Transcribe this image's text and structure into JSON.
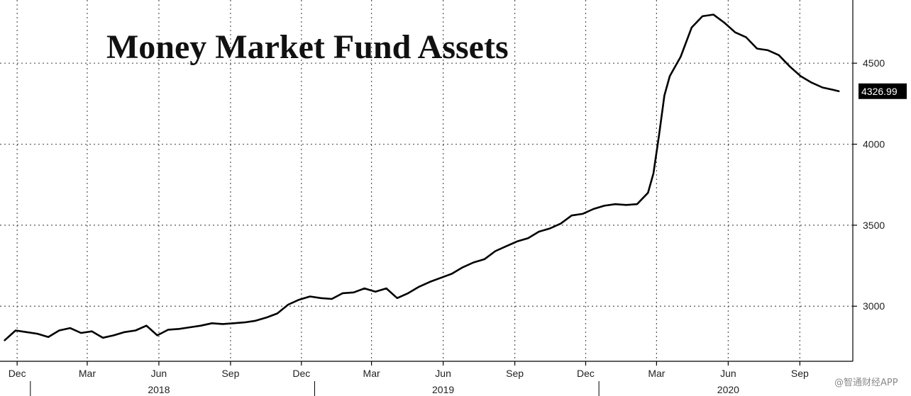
{
  "chart_data": {
    "type": "line",
    "title": "Money Market Fund Assets",
    "xlabel": "",
    "ylabel": "",
    "ylim": [
      2660,
      4890
    ],
    "yticks": [
      3000,
      3500,
      4000,
      4500
    ],
    "grid": true,
    "x_ticks": [
      {
        "label": "Dec",
        "date": "2017-12"
      },
      {
        "label": "Mar",
        "date": "2018-03"
      },
      {
        "label": "Jun",
        "date": "2018-06"
      },
      {
        "label": "Sep",
        "date": "2018-09"
      },
      {
        "label": "Dec",
        "date": "2018-12"
      },
      {
        "label": "Mar",
        "date": "2019-03"
      },
      {
        "label": "Jun",
        "date": "2019-06"
      },
      {
        "label": "Sep",
        "date": "2019-09"
      },
      {
        "label": "Dec",
        "date": "2019-12"
      },
      {
        "label": "Mar",
        "date": "2020-03"
      },
      {
        "label": "Jun",
        "date": "2020-06"
      },
      {
        "label": "Sep",
        "date": "2020-09"
      }
    ],
    "years": [
      {
        "label": "2018",
        "date": "2018-06"
      },
      {
        "label": "2019",
        "date": "2019-06"
      },
      {
        "label": "2020",
        "date": "2020-06"
      }
    ],
    "last_value_label": "4326.99",
    "series": [
      {
        "points": [
          [
            "2017-11-29",
            2790
          ],
          [
            "2017-12-13",
            2850
          ],
          [
            "2017-12-27",
            2840
          ],
          [
            "2018-01-10",
            2830
          ],
          [
            "2018-01-24",
            2810
          ],
          [
            "2018-02-07",
            2850
          ],
          [
            "2018-02-21",
            2865
          ],
          [
            "2018-03-07",
            2835
          ],
          [
            "2018-03-21",
            2845
          ],
          [
            "2018-04-04",
            2805
          ],
          [
            "2018-04-18",
            2820
          ],
          [
            "2018-05-02",
            2840
          ],
          [
            "2018-05-16",
            2850
          ],
          [
            "2018-05-30",
            2880
          ],
          [
            "2018-06-13",
            2820
          ],
          [
            "2018-06-27",
            2855
          ],
          [
            "2018-07-11",
            2860
          ],
          [
            "2018-07-25",
            2870
          ],
          [
            "2018-08-08",
            2880
          ],
          [
            "2018-08-22",
            2895
          ],
          [
            "2018-09-05",
            2890
          ],
          [
            "2018-09-19",
            2895
          ],
          [
            "2018-10-03",
            2900
          ],
          [
            "2018-10-17",
            2910
          ],
          [
            "2018-10-31",
            2930
          ],
          [
            "2018-11-14",
            2955
          ],
          [
            "2018-11-28",
            3010
          ],
          [
            "2018-12-12",
            3040
          ],
          [
            "2018-12-26",
            3060
          ],
          [
            "2019-01-09",
            3050
          ],
          [
            "2019-01-23",
            3045
          ],
          [
            "2019-02-06",
            3080
          ],
          [
            "2019-02-20",
            3085
          ],
          [
            "2019-03-06",
            3110
          ],
          [
            "2019-03-20",
            3090
          ],
          [
            "2019-04-03",
            3110
          ],
          [
            "2019-04-17",
            3050
          ],
          [
            "2019-05-01",
            3080
          ],
          [
            "2019-05-15",
            3120
          ],
          [
            "2019-05-29",
            3150
          ],
          [
            "2019-06-12",
            3175
          ],
          [
            "2019-06-26",
            3200
          ],
          [
            "2019-07-10",
            3240
          ],
          [
            "2019-07-24",
            3270
          ],
          [
            "2019-08-07",
            3290
          ],
          [
            "2019-08-21",
            3340
          ],
          [
            "2019-09-04",
            3370
          ],
          [
            "2019-09-18",
            3400
          ],
          [
            "2019-10-02",
            3420
          ],
          [
            "2019-10-16",
            3460
          ],
          [
            "2019-10-30",
            3480
          ],
          [
            "2019-11-13",
            3510
          ],
          [
            "2019-11-27",
            3560
          ],
          [
            "2019-12-11",
            3570
          ],
          [
            "2019-12-25",
            3600
          ],
          [
            "2020-01-08",
            3620
          ],
          [
            "2020-01-22",
            3630
          ],
          [
            "2020-02-05",
            3625
          ],
          [
            "2020-02-19",
            3630
          ],
          [
            "2020-03-04",
            3700
          ],
          [
            "2020-03-11",
            3820
          ],
          [
            "2020-03-18",
            4050
          ],
          [
            "2020-03-25",
            4300
          ],
          [
            "2020-04-01",
            4420
          ],
          [
            "2020-04-15",
            4540
          ],
          [
            "2020-04-29",
            4720
          ],
          [
            "2020-05-13",
            4790
          ],
          [
            "2020-05-27",
            4800
          ],
          [
            "2020-06-10",
            4750
          ],
          [
            "2020-06-24",
            4690
          ],
          [
            "2020-07-08",
            4660
          ],
          [
            "2020-07-22",
            4590
          ],
          [
            "2020-08-05",
            4580
          ],
          [
            "2020-08-19",
            4550
          ],
          [
            "2020-09-02",
            4480
          ],
          [
            "2020-09-16",
            4420
          ],
          [
            "2020-09-30",
            4380
          ],
          [
            "2020-10-14",
            4350
          ],
          [
            "2020-10-28",
            4335
          ],
          [
            "2020-11-04",
            4326.99
          ]
        ]
      }
    ]
  },
  "watermark": "@智通财经APP"
}
